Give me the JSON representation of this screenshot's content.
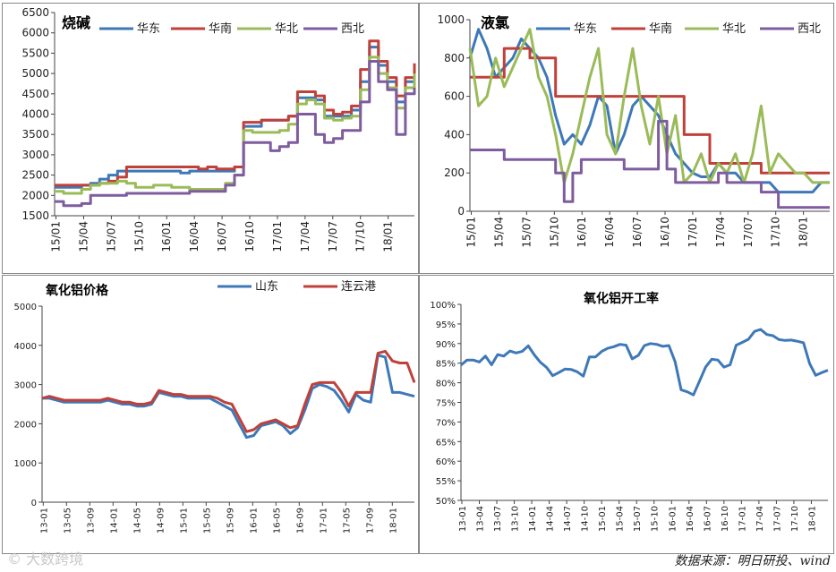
{
  "source_text": "数据来源：明日研投、wind",
  "watermark_text": "大数跨境",
  "watermark_icon": "logo-icon",
  "chart_data": [
    {
      "type": "line",
      "title": "烧碱",
      "ylim": [
        1500,
        6500
      ],
      "yticks": [
        1500,
        2000,
        2500,
        3000,
        3500,
        4000,
        4500,
        5000,
        5500,
        6000,
        6500
      ],
      "xticks": [
        "15/01",
        "15/04",
        "15/07",
        "15/10",
        "16/01",
        "16/04",
        "16/07",
        "16/10",
        "17/01",
        "17/04",
        "17/07",
        "17/10",
        "18/01"
      ],
      "xlabel": "",
      "ylabel": "",
      "legend": "top",
      "series": [
        {
          "name": "华东",
          "color": "#3E78B8",
          "step": true,
          "values": [
            2200,
            2200,
            2200,
            2250,
            2300,
            2400,
            2500,
            2600,
            2600,
            2600,
            2600,
            2600,
            2600,
            2600,
            2550,
            2600,
            2600,
            2600,
            2600,
            2600,
            2700,
            3700,
            3700,
            3850,
            3850,
            3850,
            3950,
            4400,
            4400,
            4350,
            3950,
            3950,
            3950,
            4100,
            4800,
            5650,
            5200,
            4800,
            4300,
            4800,
            5150
          ]
        },
        {
          "name": "华南",
          "color": "#C0413A",
          "step": true,
          "values": [
            2250,
            2250,
            2250,
            2250,
            2250,
            2300,
            2350,
            2450,
            2700,
            2700,
            2700,
            2700,
            2700,
            2700,
            2700,
            2700,
            2650,
            2700,
            2650,
            2650,
            2700,
            3800,
            3800,
            3850,
            3850,
            3850,
            3950,
            4550,
            4550,
            4450,
            4100,
            4000,
            4050,
            4200,
            5100,
            5800,
            5300,
            4900,
            4450,
            4900,
            5250
          ]
        },
        {
          "name": "华北",
          "color": "#9BBB59",
          "step": true,
          "values": [
            2100,
            2050,
            2050,
            2150,
            2250,
            2300,
            2300,
            2350,
            2300,
            2200,
            2200,
            2250,
            2250,
            2200,
            2200,
            2150,
            2150,
            2150,
            2150,
            2300,
            2500,
            3600,
            3550,
            3550,
            3550,
            3600,
            3750,
            4250,
            4350,
            4250,
            3900,
            3850,
            3900,
            3950,
            4600,
            5400,
            5000,
            4650,
            4150,
            4650,
            5000
          ]
        },
        {
          "name": "西北",
          "color": "#7F5C9E",
          "step": true,
          "values": [
            1850,
            1750,
            1750,
            1800,
            2000,
            2000,
            2000,
            2000,
            2050,
            2050,
            2050,
            2050,
            2050,
            2050,
            2050,
            2100,
            2100,
            2100,
            2100,
            2250,
            2500,
            3300,
            3300,
            3300,
            3100,
            3200,
            3300,
            4000,
            4000,
            3500,
            3300,
            3400,
            3600,
            3600,
            4300,
            5300,
            4800,
            4600,
            3500,
            4500,
            4650
          ]
        }
      ]
    },
    {
      "type": "line",
      "title": "液氯",
      "ylim": [
        0,
        1000
      ],
      "yticks": [
        0,
        200,
        400,
        600,
        800,
        1000
      ],
      "xticks": [
        "15/01",
        "15/04",
        "15/07",
        "15/10",
        "16/01",
        "16/04",
        "16/07",
        "16/10",
        "17/01",
        "17/04",
        "17/07",
        "17/10",
        "18/01"
      ],
      "xlabel": "",
      "ylabel": "",
      "legend": "top",
      "series": [
        {
          "name": "华东",
          "color": "#3E78B8",
          "step": false,
          "values": [
            800,
            950,
            850,
            700,
            750,
            800,
            900,
            850,
            800,
            700,
            500,
            350,
            400,
            350,
            450,
            600,
            550,
            300,
            400,
            550,
            600,
            550,
            500,
            400,
            300,
            250,
            200,
            180,
            180,
            250,
            200,
            200,
            150,
            150,
            150,
            150,
            100,
            100,
            100,
            100,
            100,
            150,
            150
          ]
        },
        {
          "name": "华南",
          "color": "#C0413A",
          "step": true,
          "values": [
            700,
            700,
            700,
            700,
            850,
            850,
            850,
            800,
            800,
            800,
            600,
            600,
            600,
            600,
            600,
            600,
            600,
            600,
            600,
            600,
            600,
            600,
            600,
            600,
            600,
            400,
            400,
            400,
            250,
            250,
            250,
            250,
            250,
            250,
            200,
            200,
            200,
            200,
            200,
            200,
            200,
            200,
            200
          ]
        },
        {
          "name": "华北",
          "color": "#9BBB59",
          "step": false,
          "values": [
            850,
            550,
            600,
            800,
            650,
            750,
            850,
            950,
            700,
            600,
            400,
            150,
            300,
            500,
            700,
            850,
            400,
            300,
            600,
            850,
            550,
            350,
            600,
            300,
            500,
            150,
            200,
            300,
            150,
            250,
            200,
            300,
            150,
            300,
            550,
            200,
            300,
            250,
            200,
            200,
            150,
            150,
            150
          ]
        },
        {
          "name": "西北",
          "color": "#7F5C9E",
          "step": true,
          "values": [
            320,
            320,
            320,
            320,
            270,
            270,
            270,
            270,
            270,
            270,
            200,
            50,
            200,
            270,
            270,
            270,
            270,
            270,
            220,
            220,
            220,
            220,
            470,
            220,
            150,
            150,
            150,
            150,
            150,
            200,
            150,
            150,
            150,
            150,
            100,
            100,
            20,
            20,
            20,
            20,
            20,
            20,
            20
          ]
        }
      ]
    },
    {
      "type": "line",
      "title": "氧化铝价格",
      "ylim": [
        0,
        5000
      ],
      "yticks": [
        0,
        1000,
        2000,
        3000,
        4000,
        5000
      ],
      "xticks": [
        "13-01",
        "13-05",
        "13-09",
        "14-01",
        "14-05",
        "14-09",
        "15-01",
        "15-05",
        "15-09",
        "16-01",
        "16-05",
        "16-09",
        "17-01",
        "17-05",
        "17-09",
        "18-01"
      ],
      "xlabel": "",
      "ylabel": "",
      "legend": "top",
      "series": [
        {
          "name": "山东",
          "color": "#3E78B8",
          "step": false,
          "values": [
            2650,
            2650,
            2600,
            2550,
            2550,
            2550,
            2550,
            2550,
            2550,
            2600,
            2550,
            2500,
            2500,
            2450,
            2450,
            2500,
            2800,
            2750,
            2700,
            2700,
            2650,
            2650,
            2650,
            2650,
            2550,
            2450,
            2350,
            2000,
            1650,
            1700,
            1950,
            2000,
            2050,
            1950,
            1750,
            1900,
            2350,
            2900,
            3000,
            2950,
            2850,
            2600,
            2300,
            2750,
            2600,
            2550,
            3750,
            3700,
            2800,
            2800,
            2750,
            2700
          ]
        },
        {
          "name": "连云港",
          "color": "#C0413A",
          "step": false,
          "values": [
            2650,
            2700,
            2650,
            2600,
            2600,
            2600,
            2600,
            2600,
            2600,
            2650,
            2600,
            2550,
            2550,
            2500,
            2500,
            2550,
            2850,
            2800,
            2750,
            2750,
            2700,
            2700,
            2700,
            2700,
            2650,
            2550,
            2500,
            2150,
            1800,
            1850,
            2000,
            2050,
            2100,
            2000,
            1900,
            1950,
            2500,
            3000,
            3050,
            3050,
            3050,
            2800,
            2450,
            2800,
            2800,
            2800,
            3800,
            3850,
            3600,
            3550,
            3550,
            3050
          ]
        }
      ]
    },
    {
      "type": "line",
      "title": "氧化铝开工率",
      "ylim": [
        50,
        100
      ],
      "yticks": [
        "50%",
        "55%",
        "60%",
        "65%",
        "70%",
        "75%",
        "80%",
        "85%",
        "90%",
        "95%",
        "100%"
      ],
      "xticks": [
        "13-01",
        "13-04",
        "13-07",
        "13-10",
        "14-01",
        "14-04",
        "14-07",
        "14-10",
        "15-01",
        "15-04",
        "15-07",
        "15-10",
        "16-01",
        "16-04",
        "16-07",
        "16-10",
        "17-01",
        "17-04",
        "17-07",
        "17-10",
        "18-01"
      ],
      "xlabel": "",
      "ylabel": "",
      "legend": "none",
      "series": [
        {
          "name": "开工率",
          "color": "#3E78B8",
          "step": false,
          "values": [
            84.5,
            85.8,
            85.8,
            85.3,
            86.8,
            84.6,
            87.2,
            86.8,
            88.1,
            87.6,
            88.0,
            89.4,
            87.1,
            85.2,
            83.9,
            81.8,
            82.6,
            83.5,
            83.4,
            82.8,
            81.7,
            86.6,
            86.6,
            88.0,
            88.8,
            89.2,
            89.8,
            89.6,
            86.1,
            87.0,
            89.5,
            90.0,
            89.8,
            89.3,
            89.5,
            85.4,
            78.2,
            77.7,
            76.9,
            80.4,
            84.0,
            86.0,
            85.8,
            84.0,
            84.6,
            89.6,
            90.3,
            91.1,
            93.1,
            93.6,
            92.3,
            92.0,
            91.0,
            90.8,
            90.9,
            90.6,
            90.2,
            84.9,
            81.9,
            82.6,
            83.2
          ]
        }
      ]
    }
  ]
}
